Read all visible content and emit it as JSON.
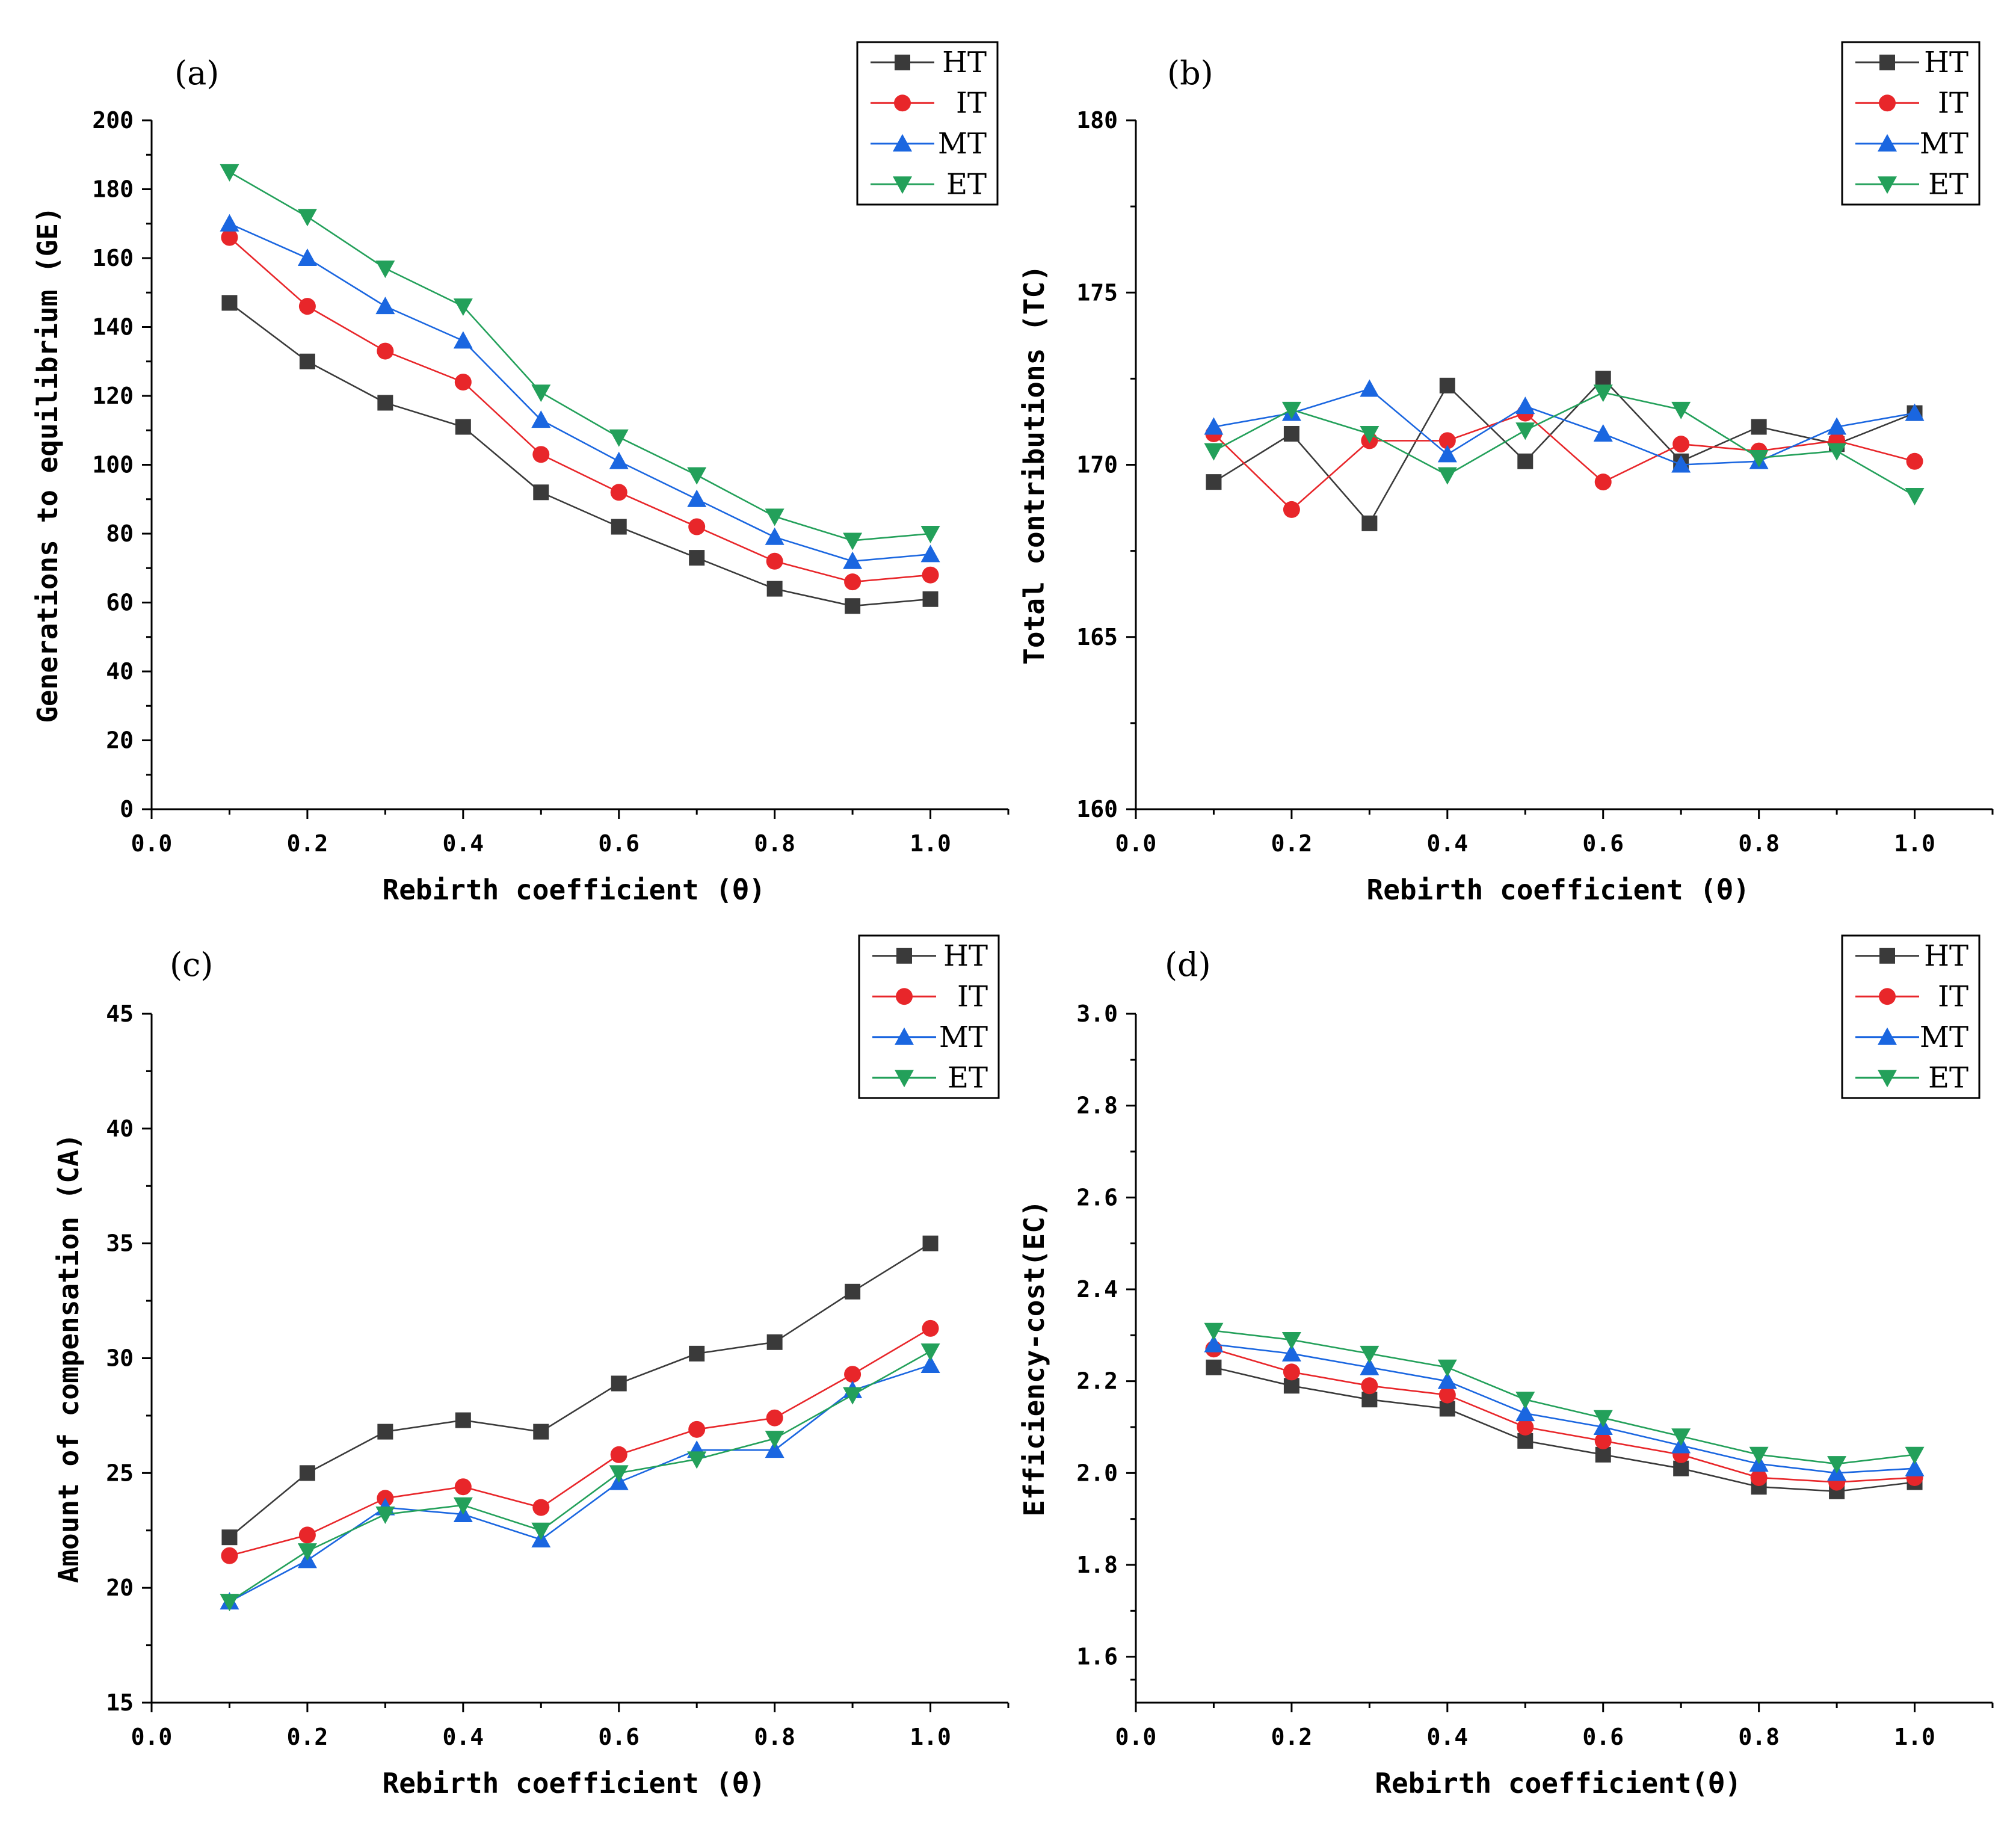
{
  "colors": {
    "HT": "#3a3a3a",
    "IT": "#e8262a",
    "MT": "#1a66e0",
    "ET": "#23a05a"
  },
  "markers": {
    "HT": "square",
    "IT": "circle",
    "MT": "triangle-up",
    "ET": "triangle-down"
  },
  "chart_data": [
    {
      "type": "line",
      "panel_label": "(a)",
      "xlabel": "Rebirth coefficient (θ)",
      "ylabel": "Generations to equilibrium (GE)",
      "xlim": [
        0.0,
        1.1
      ],
      "ylim": [
        0,
        200
      ],
      "xticks": [
        0.0,
        0.2,
        0.4,
        0.6,
        0.8,
        1.0
      ],
      "xtick_labels": [
        "0.0",
        "0.2",
        "0.4",
        "0.6",
        "0.8",
        "1.0"
      ],
      "yticks": [
        0,
        20,
        40,
        60,
        80,
        100,
        120,
        140,
        160,
        180,
        200
      ],
      "ytick_labels": [
        "0",
        "20",
        "40",
        "60",
        "80",
        "100",
        "120",
        "140",
        "160",
        "180",
        "200"
      ],
      "legend_position": "top-right",
      "x": [
        0.1,
        0.2,
        0.3,
        0.4,
        0.5,
        0.6,
        0.7,
        0.8,
        0.9,
        1.0
      ],
      "series": [
        {
          "name": "HT",
          "values": [
            147,
            130,
            118,
            111,
            92,
            82,
            73,
            64,
            59,
            61
          ]
        },
        {
          "name": "IT",
          "values": [
            166,
            146,
            133,
            124,
            103,
            92,
            82,
            72,
            66,
            68
          ]
        },
        {
          "name": "MT",
          "values": [
            170,
            160,
            146,
            136,
            113,
            101,
            90,
            79,
            72,
            74
          ]
        },
        {
          "name": "ET",
          "values": [
            185,
            172,
            157,
            146,
            121,
            108,
            97,
            85,
            78,
            80
          ]
        }
      ]
    },
    {
      "type": "line",
      "panel_label": "(b)",
      "xlabel": "Rebirth coefficient (θ)",
      "ylabel": "Total contributions (TC)",
      "xlim": [
        0.0,
        1.1
      ],
      "ylim": [
        160,
        180
      ],
      "xticks": [
        0.0,
        0.2,
        0.4,
        0.6,
        0.8,
        1.0
      ],
      "xtick_labels": [
        "0.0",
        "0.2",
        "0.4",
        "0.6",
        "0.8",
        "1.0"
      ],
      "yticks": [
        160,
        165,
        170,
        175,
        180
      ],
      "ytick_labels": [
        "160",
        "165",
        "170",
        "175",
        "180"
      ],
      "legend_position": "top-right",
      "x": [
        0.1,
        0.2,
        0.3,
        0.4,
        0.5,
        0.6,
        0.7,
        0.8,
        0.9,
        1.0
      ],
      "series": [
        {
          "name": "HT",
          "values": [
            169.5,
            170.9,
            168.3,
            172.3,
            170.1,
            172.5,
            170.1,
            171.1,
            170.6,
            171.5
          ]
        },
        {
          "name": "IT",
          "values": [
            170.9,
            168.7,
            170.7,
            170.7,
            171.5,
            169.5,
            170.6,
            170.4,
            170.7,
            170.1
          ]
        },
        {
          "name": "MT",
          "values": [
            171.1,
            171.5,
            172.2,
            170.3,
            171.7,
            170.9,
            170.0,
            170.1,
            171.1,
            171.5
          ]
        },
        {
          "name": "ET",
          "values": [
            170.4,
            171.6,
            170.9,
            169.7,
            171.0,
            172.1,
            171.6,
            170.2,
            170.4,
            169.1
          ]
        }
      ]
    },
    {
      "type": "line",
      "panel_label": "(c)",
      "xlabel": "Rebirth coefficient (θ)",
      "ylabel": "Amount of compensation (CA)",
      "xlim": [
        0.0,
        1.1
      ],
      "ylim": [
        15,
        45
      ],
      "xticks": [
        0.0,
        0.2,
        0.4,
        0.6,
        0.8,
        1.0
      ],
      "xtick_labels": [
        "0.0",
        "0.2",
        "0.4",
        "0.6",
        "0.8",
        "1.0"
      ],
      "yticks": [
        15,
        20,
        25,
        30,
        35,
        40,
        45
      ],
      "ytick_labels": [
        "15",
        "20",
        "25",
        "30",
        "35",
        "40",
        "45"
      ],
      "legend_position": "top-right",
      "x": [
        0.1,
        0.2,
        0.3,
        0.4,
        0.5,
        0.6,
        0.7,
        0.8,
        0.9,
        1.0
      ],
      "series": [
        {
          "name": "HT",
          "values": [
            22.2,
            25.0,
            26.8,
            27.3,
            26.8,
            28.9,
            30.2,
            30.7,
            32.9,
            35.0
          ]
        },
        {
          "name": "IT",
          "values": [
            21.4,
            22.3,
            23.9,
            24.4,
            23.5,
            25.8,
            26.9,
            27.4,
            29.3,
            31.3
          ]
        },
        {
          "name": "MT",
          "values": [
            19.4,
            21.2,
            23.5,
            23.2,
            22.1,
            24.6,
            26.0,
            26.0,
            28.6,
            29.7
          ]
        },
        {
          "name": "ET",
          "values": [
            19.4,
            21.6,
            23.2,
            23.6,
            22.5,
            25.0,
            25.6,
            26.5,
            28.4,
            30.3
          ]
        }
      ]
    },
    {
      "type": "line",
      "panel_label": "(d)",
      "xlabel": "Rebirth coefficient(θ)",
      "ylabel": "Efficiency-cost(EC)",
      "xlim": [
        0.0,
        1.1
      ],
      "ylim": [
        1.5,
        3.0
      ],
      "xticks": [
        0.0,
        0.2,
        0.4,
        0.6,
        0.8,
        1.0
      ],
      "xtick_labels": [
        "0.0",
        "0.2",
        "0.4",
        "0.6",
        "0.8",
        "1.0"
      ],
      "yticks": [
        1.6,
        1.8,
        2.0,
        2.2,
        2.4,
        2.6,
        2.8,
        3.0
      ],
      "ytick_labels": [
        "1.6",
        "1.8",
        "2.0",
        "2.2",
        "2.4",
        "2.6",
        "2.8",
        "3.0"
      ],
      "legend_position": "top-right",
      "x": [
        0.1,
        0.2,
        0.3,
        0.4,
        0.5,
        0.6,
        0.7,
        0.8,
        0.9,
        1.0
      ],
      "series": [
        {
          "name": "HT",
          "values": [
            2.23,
            2.19,
            2.16,
            2.14,
            2.07,
            2.04,
            2.01,
            1.97,
            1.96,
            1.98
          ]
        },
        {
          "name": "IT",
          "values": [
            2.27,
            2.22,
            2.19,
            2.17,
            2.1,
            2.07,
            2.04,
            1.99,
            1.98,
            1.99
          ]
        },
        {
          "name": "MT",
          "values": [
            2.28,
            2.26,
            2.23,
            2.2,
            2.13,
            2.1,
            2.06,
            2.02,
            2.0,
            2.01
          ]
        },
        {
          "name": "ET",
          "values": [
            2.31,
            2.29,
            2.26,
            2.23,
            2.16,
            2.12,
            2.08,
            2.04,
            2.02,
            2.04
          ]
        }
      ]
    }
  ]
}
